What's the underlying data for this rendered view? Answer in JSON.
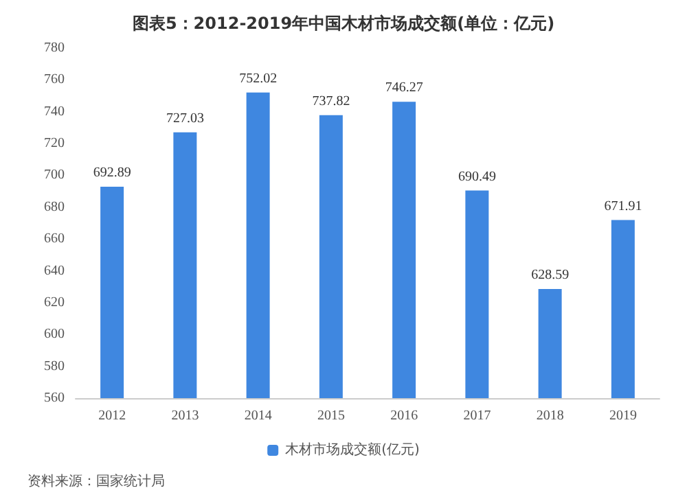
{
  "chart_data": {
    "type": "bar",
    "title": "图表5：2012-2019年中国木材市场成交额(单位：亿元)",
    "categories": [
      "2012",
      "2013",
      "2014",
      "2015",
      "2016",
      "2017",
      "2018",
      "2019"
    ],
    "series": [
      {
        "name": "木材市场成交额(亿元)",
        "color": "#3f87e0",
        "values": [
          692.89,
          727.03,
          752.02,
          737.82,
          746.27,
          690.49,
          628.59,
          671.91
        ]
      }
    ],
    "ylim": [
      560,
      780
    ],
    "yticks": [
      560,
      580,
      600,
      620,
      640,
      660,
      680,
      700,
      720,
      740,
      760,
      780
    ],
    "grid": false,
    "legend": "bottom",
    "data_labels": true,
    "annotations": [
      "资料来源：国家统计局"
    ]
  }
}
